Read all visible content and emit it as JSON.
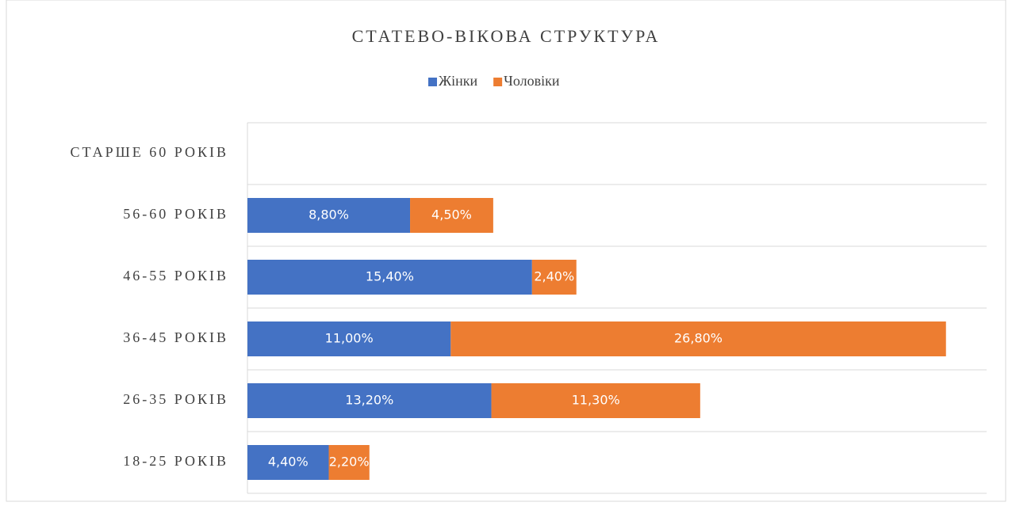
{
  "chart_data": {
    "type": "stacked-bar-horizontal",
    "title": "СТАТЕВО-ВІКОВА СТРУКТУРА",
    "categories": [
      "СТАРШЕ 60 РОКІВ",
      "56-60 РОКІВ",
      "46-55 РОКІВ",
      "36-45 РОКІВ",
      "26-35 РОКІВ",
      "18-25 РОКІВ"
    ],
    "series": [
      {
        "name": "Жінки",
        "color": "#4472c4",
        "values": [
          null,
          8.8,
          15.4,
          11.0,
          13.2,
          4.4
        ],
        "value_labels": [
          null,
          "8,80%",
          "15,40%",
          "11,00%",
          "13,20%",
          "4,40%"
        ]
      },
      {
        "name": "Чоловіки",
        "color": "#ed7d31",
        "values": [
          null,
          4.5,
          2.4,
          26.8,
          11.3,
          2.2
        ],
        "value_labels": [
          null,
          "4,50%",
          "2,40%",
          "26,80%",
          "11,30%",
          "2,20%"
        ]
      }
    ],
    "xlim": [
      0,
      40
    ],
    "legend": "top"
  }
}
